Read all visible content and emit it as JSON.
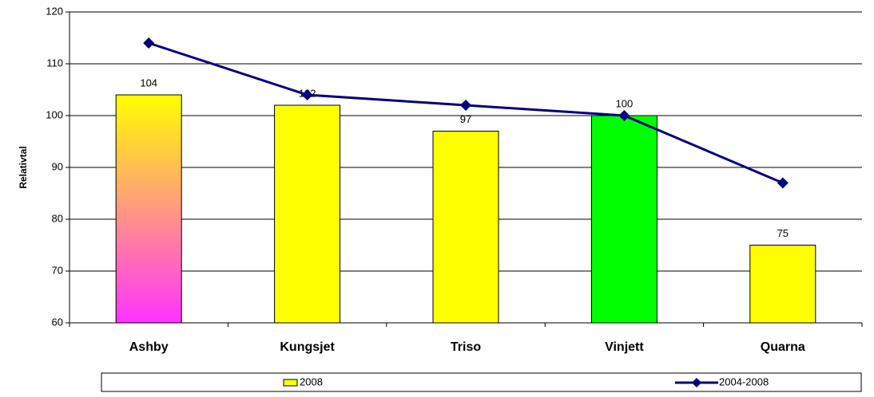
{
  "chart_data": {
    "type": "bar",
    "y_label": "Relativtal",
    "categories": [
      "Ashby",
      "Kungsjet",
      "Triso",
      "Vinjett",
      "Quarna"
    ],
    "series": [
      {
        "name": "2008",
        "type": "bar",
        "color": "#ffff00",
        "colors": [
          [
            "#ffff00",
            "#ff33ff"
          ],
          "#ffff00",
          "#ffff00",
          "#00ff00",
          "#ffff00"
        ],
        "values": [
          104,
          102,
          97,
          100,
          75
        ]
      },
      {
        "name": "2004-2008",
        "type": "line",
        "color": "#000080",
        "values": [
          114,
          104,
          102,
          100,
          87
        ]
      }
    ],
    "ylim": [
      60,
      120
    ],
    "yticks": [
      60,
      70,
      80,
      90,
      100,
      110,
      120
    ],
    "grid": true,
    "legend": "bottom"
  }
}
